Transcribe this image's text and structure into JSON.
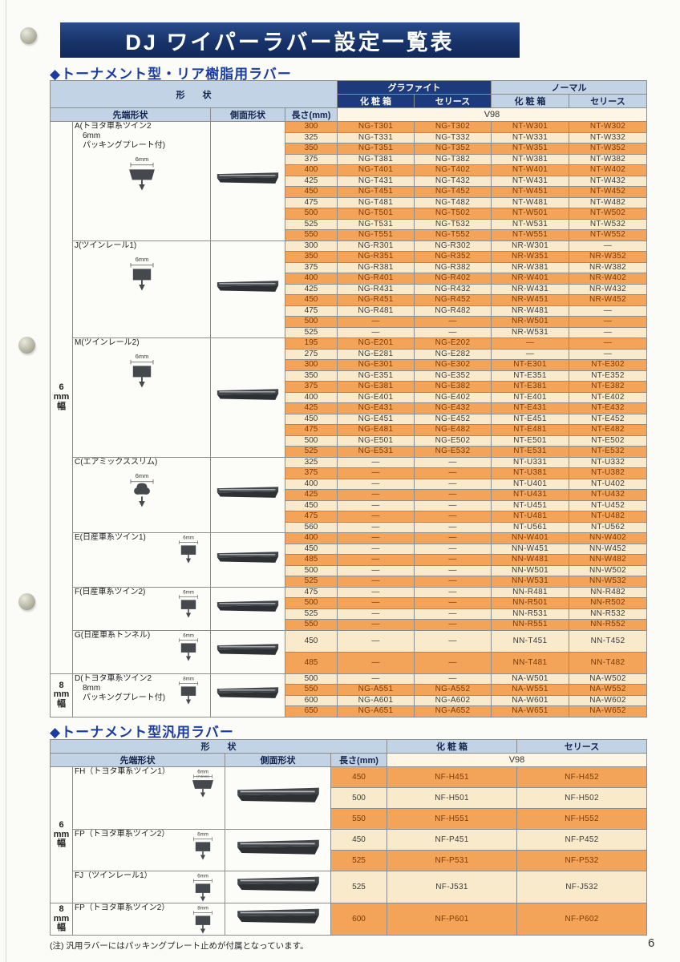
{
  "title": {
    "text": "DJ ワイパーラバー設定一覧表"
  },
  "page_number": "6",
  "footnote": "(注) 汎用ラバーにはパッキングプレート止めが付属となっています。",
  "section1": {
    "heading": "◆トーナメント型・リア樹脂用ラバー",
    "header": {
      "shape": "形　　状",
      "graphite": "グラファイト",
      "normal": "ノーマル",
      "box": "化 粧 箱",
      "series": "セリース",
      "box2": "化 粧 箱",
      "series2": "セリース",
      "tip": "先端形状",
      "side": "側面形状",
      "length": "長さ(mm)",
      "v98": "V98"
    },
    "groups": [
      {
        "width_label": [
          "6",
          "mm",
          "幅"
        ],
        "blocks": [
          {
            "id": "A",
            "tip": "trap",
            "dim": "6mm",
            "layout": "column",
            "label_lines": [
              "A(トヨタ車系ツイン2",
              "　6mm",
              "　パッキングプレート付)"
            ],
            "rows": [
              [
                "300",
                "NG-T301",
                "NG-T302",
                "NT-W301",
                "NT-W302"
              ],
              [
                "325",
                "NG-T331",
                "NG-T332",
                "NT-W331",
                "NT-W332"
              ],
              [
                "350",
                "NG-T351",
                "NG-T352",
                "NT-W351",
                "NT-W352"
              ],
              [
                "375",
                "NG-T381",
                "NG-T382",
                "NT-W381",
                "NT-W382"
              ],
              [
                "400",
                "NG-T401",
                "NG-T402",
                "NT-W401",
                "NT-W402"
              ],
              [
                "425",
                "NG-T431",
                "NG-T432",
                "NT-W431",
                "NT-W432"
              ],
              [
                "450",
                "NG-T451",
                "NG-T452",
                "NT-W451",
                "NT-W452"
              ],
              [
                "475",
                "NG-T481",
                "NG-T482",
                "NT-W481",
                "NT-W482"
              ],
              [
                "500",
                "NG-T501",
                "NG-T502",
                "NT-W501",
                "NT-W502"
              ],
              [
                "525",
                "NG-T531",
                "NG-T532",
                "NT-W531",
                "NT-W532"
              ],
              [
                "550",
                "NG-T551",
                "NG-T552",
                "NT-W551",
                "NT-W552"
              ]
            ]
          },
          {
            "id": "J",
            "tip": "square",
            "dim": "6mm",
            "layout": "column",
            "label_lines": [
              "J(ツインレール1)"
            ],
            "rows": [
              [
                "300",
                "NG-R301",
                "NG-R302",
                "NR-W301",
                "—"
              ],
              [
                "350",
                "NG-R351",
                "NG-R352",
                "NR-W351",
                "NR-W352"
              ],
              [
                "375",
                "NG-R381",
                "NG-R382",
                "NR-W381",
                "NR-W382"
              ],
              [
                "400",
                "NG-R401",
                "NG-R402",
                "NR-W401",
                "NR-W402"
              ],
              [
                "425",
                "NG-R431",
                "NG-R432",
                "NR-W431",
                "NR-W432"
              ],
              [
                "450",
                "NG-R451",
                "NG-R452",
                "NR-W451",
                "NR-W452"
              ],
              [
                "475",
                "NG-R481",
                "NG-R482",
                "NR-W481",
                "—"
              ],
              [
                "500",
                "—",
                "—",
                "NR-W501",
                "—"
              ],
              [
                "525",
                "—",
                "—",
                "NR-W531",
                "—"
              ]
            ]
          },
          {
            "id": "M",
            "tip": "square",
            "dim": "6mm",
            "layout": "column",
            "label_lines": [
              "M(ツインレール2)"
            ],
            "rows": [
              [
                "195",
                "NG-E201",
                "NG-E202",
                "—",
                "—"
              ],
              [
                "275",
                "NG-E281",
                "NG-E282",
                "—",
                "—"
              ],
              [
                "300",
                "NG-E301",
                "NG-E302",
                "NT-E301",
                "NT-E302"
              ],
              [
                "350",
                "NG-E351",
                "NG-E352",
                "NT-E351",
                "NT-E352"
              ],
              [
                "375",
                "NG-E381",
                "NG-E382",
                "NT-E381",
                "NT-E382"
              ],
              [
                "400",
                "NG-E401",
                "NG-E402",
                "NT-E401",
                "NT-E402"
              ],
              [
                "425",
                "NG-E431",
                "NG-E432",
                "NT-E431",
                "NT-E432"
              ],
              [
                "450",
                "NG-E451",
                "NG-E452",
                "NT-E451",
                "NT-E452"
              ],
              [
                "475",
                "NG-E481",
                "NG-E482",
                "NT-E481",
                "NT-E482"
              ],
              [
                "500",
                "NG-E501",
                "NG-E502",
                "NT-E501",
                "NT-E502"
              ],
              [
                "525",
                "NG-E531",
                "NG-E532",
                "NT-E531",
                "NT-E532"
              ]
            ]
          },
          {
            "id": "C",
            "tip": "mushroom",
            "dim": "6mm",
            "layout": "column",
            "label_lines": [
              "C(エアミックススリム)"
            ],
            "rows": [
              [
                "325",
                "—",
                "—",
                "NT-U331",
                "NT-U332"
              ],
              [
                "375",
                "—",
                "—",
                "NT-U381",
                "NT-U382"
              ],
              [
                "400",
                "—",
                "—",
                "NT-U401",
                "NT-U402"
              ],
              [
                "425",
                "—",
                "—",
                "NT-U431",
                "NT-U432"
              ],
              [
                "450",
                "—",
                "—",
                "NT-U451",
                "NT-U452"
              ],
              [
                "475",
                "—",
                "—",
                "NT-U481",
                "NT-U482"
              ],
              [
                "560",
                "—",
                "—",
                "NT-U561",
                "NT-U562"
              ]
            ]
          },
          {
            "id": "E",
            "tip": "square",
            "dim": "6mm",
            "layout": "inline",
            "label_lines": [
              "E(日産車系ツイン1)"
            ],
            "rows": [
              [
                "400",
                "—",
                "—",
                "NN-W401",
                "NN-W402"
              ],
              [
                "450",
                "—",
                "—",
                "NN-W451",
                "NN-W452"
              ],
              [
                "485",
                "—",
                "—",
                "NN-W481",
                "NN-W482"
              ],
              [
                "500",
                "—",
                "—",
                "NN-W501",
                "NN-W502"
              ],
              [
                "525",
                "—",
                "—",
                "NN-W531",
                "NN-W532"
              ]
            ]
          },
          {
            "id": "F",
            "tip": "square",
            "dim": "6mm",
            "layout": "inline",
            "label_lines": [
              "F(日産車系ツイン2)"
            ],
            "rows": [
              [
                "475",
                "—",
                "—",
                "NN-R481",
                "NN-R482"
              ],
              [
                "500",
                "—",
                "—",
                "NN-R501",
                "NN-R502"
              ],
              [
                "525",
                "—",
                "—",
                "NN-R531",
                "NN-R532"
              ],
              [
                "550",
                "—",
                "—",
                "NN-R551",
                "NN-R552"
              ]
            ]
          },
          {
            "id": "G",
            "tip": "square",
            "dim": "6mm",
            "layout": "inline",
            "row_class": "md",
            "label_lines": [
              "G(日産車系トンネル)"
            ],
            "rows": [
              [
                "450",
                "—",
                "—",
                "NN-T451",
                "NN-T452"
              ],
              [
                "485",
                "—",
                "—",
                "NN-T481",
                "NN-T482"
              ]
            ]
          }
        ]
      },
      {
        "width_label": [
          "8",
          "mm",
          "幅"
        ],
        "blocks": [
          {
            "id": "D",
            "tip": "square",
            "dim": "8mm",
            "layout": "inline",
            "label_lines": [
              "D(トヨタ車系ツイン2",
              "　8mm",
              "　パッキングプレート付)"
            ],
            "rows": [
              [
                "500",
                "—",
                "—",
                "NA-W501",
                "NA-W502"
              ],
              [
                "550",
                "NG-A551",
                "NG-A552",
                "NA-W551",
                "NA-W552"
              ],
              [
                "600",
                "NG-A601",
                "NG-A602",
                "NA-W601",
                "NA-W602"
              ],
              [
                "650",
                "NG-A651",
                "NG-A652",
                "NA-W651",
                "NA-W652"
              ]
            ]
          }
        ]
      }
    ]
  },
  "section2": {
    "heading": "◆トーナメント型汎用ラバー",
    "header": {
      "shape": "形　　状",
      "box": "化 粧 箱",
      "series": "セリース",
      "tip": "先端形状",
      "side": "側面形状",
      "length": "長さ(mm)",
      "v98": "V98"
    },
    "groups": [
      {
        "width_label": [
          "6",
          "mm",
          "幅"
        ],
        "blocks": [
          {
            "id": "FH",
            "tip": "trap",
            "dim": "6mm",
            "dim2": "(7.6mm)",
            "layout": "inline",
            "label_lines": [
              "FH（トヨタ車系ツイン1）"
            ],
            "rows": [
              [
                "450",
                "NF-H451",
                "NF-H452"
              ],
              [
                "500",
                "NF-H501",
                "NF-H502"
              ],
              [
                "550",
                "NF-H551",
                "NF-H552"
              ]
            ]
          },
          {
            "id": "FP6",
            "tip": "square",
            "dim": "6mm",
            "layout": "inline",
            "label_lines": [
              "FP（トヨタ車系ツイン2）"
            ],
            "rows": [
              [
                "450",
                "NF-P451",
                "NF-P452"
              ],
              [
                "525",
                "NF-P531",
                "NF-P532"
              ]
            ]
          },
          {
            "id": "FJ",
            "tip": "square",
            "dim": "6mm",
            "layout": "inline",
            "row_class": "lg",
            "label_lines": [
              "FJ（ツインレール1）"
            ],
            "rows": [
              [
                "525",
                "NF-J531",
                "NF-J532"
              ]
            ]
          }
        ]
      },
      {
        "width_label": [
          "8",
          "mm",
          "幅"
        ],
        "blocks": [
          {
            "id": "FP8",
            "tip": "square",
            "dim": "8mm",
            "layout": "inline",
            "row_class": "lg",
            "label_lines": [
              "FP（トヨタ車系ツイン2）"
            ],
            "rows": [
              [
                "600",
                "NF-P601",
                "NF-P602"
              ]
            ]
          }
        ]
      }
    ]
  }
}
